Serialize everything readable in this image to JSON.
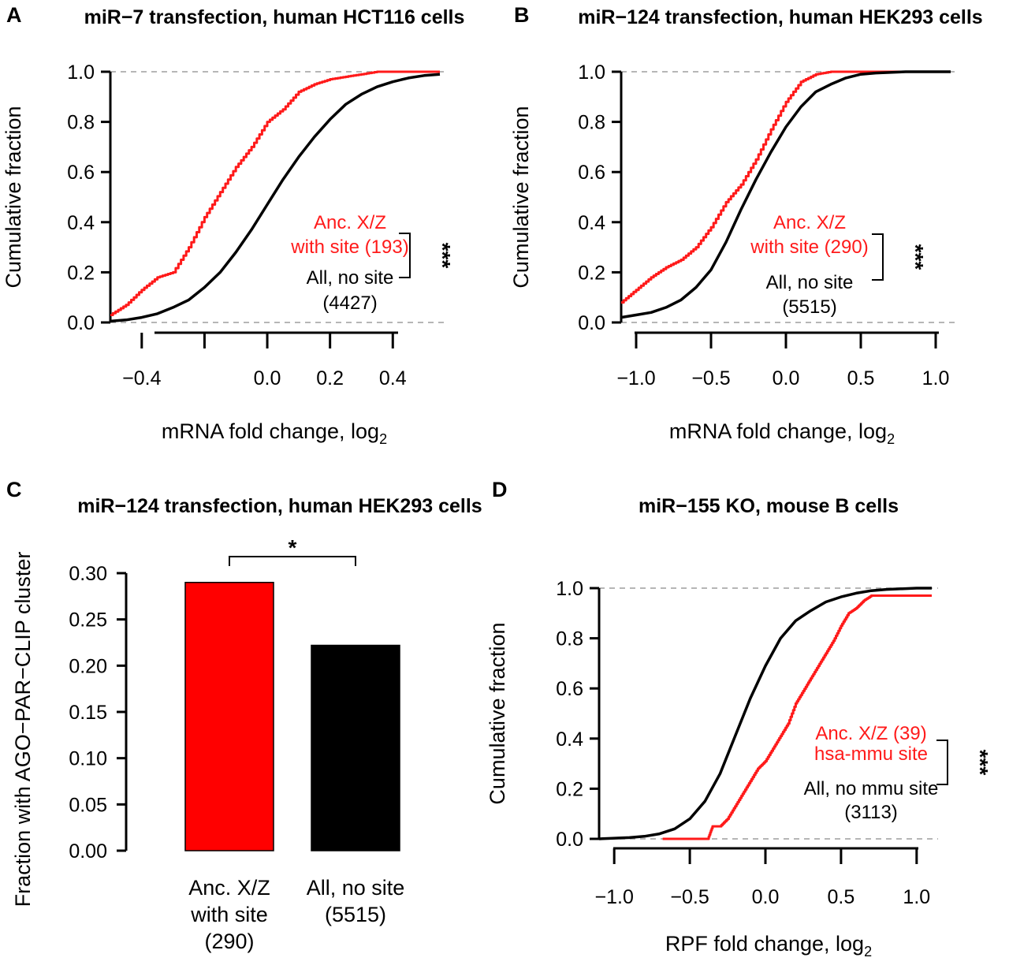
{
  "colors": {
    "red": "#ff1a1a",
    "black": "#000000",
    "grid": "#9e9e9e",
    "bar_red": "#ff0000",
    "bar_black": "#000000"
  },
  "chart_data": [
    {
      "panel": "A",
      "type": "line",
      "title": "miR−7 transfection, human HCT116 cells",
      "xlabel": "mRNA fold change, log",
      "xlabel_sub": "2",
      "ylabel": "Cumulative fraction",
      "xlim": [
        -0.5,
        0.55
      ],
      "ylim": [
        0,
        1
      ],
      "x_ticks": [
        -0.4,
        -0.2,
        0.0,
        0.2,
        0.4
      ],
      "x_tick_labels": [
        "−0.4",
        "",
        "0.0",
        "0.2",
        "0.4"
      ],
      "y_ticks": [
        0.0,
        0.2,
        0.4,
        0.6,
        0.8,
        1.0
      ],
      "y_tick_labels": [
        "0.0",
        "0.2",
        "0.4",
        "0.6",
        "0.8",
        "1.0"
      ],
      "series": [
        {
          "name": "Anc. X/Z with site (193)",
          "color": "red",
          "step": true,
          "x": [
            -0.5,
            -0.45,
            -0.4,
            -0.35,
            -0.3,
            -0.25,
            -0.2,
            -0.15,
            -0.1,
            -0.05,
            0.0,
            0.05,
            0.1,
            0.15,
            0.2,
            0.25,
            0.3,
            0.35,
            0.4,
            0.45,
            0.5,
            0.55
          ],
          "y": [
            0.03,
            0.07,
            0.13,
            0.18,
            0.2,
            0.3,
            0.42,
            0.52,
            0.62,
            0.7,
            0.8,
            0.85,
            0.92,
            0.95,
            0.97,
            0.98,
            0.99,
            1.0,
            1.0,
            1.0,
            1.0,
            1.0
          ]
        },
        {
          "name": "All, no site (4427)",
          "color": "black",
          "step": false,
          "x": [
            -0.5,
            -0.45,
            -0.4,
            -0.35,
            -0.3,
            -0.25,
            -0.2,
            -0.15,
            -0.1,
            -0.05,
            0.0,
            0.05,
            0.1,
            0.15,
            0.2,
            0.25,
            0.3,
            0.35,
            0.4,
            0.45,
            0.5,
            0.55
          ],
          "y": [
            0.005,
            0.01,
            0.02,
            0.035,
            0.06,
            0.09,
            0.14,
            0.2,
            0.28,
            0.37,
            0.47,
            0.57,
            0.66,
            0.74,
            0.81,
            0.87,
            0.91,
            0.94,
            0.96,
            0.975,
            0.985,
            0.99
          ]
        }
      ],
      "legend": {
        "red_lines": [
          "Anc. X/Z",
          "with site (193)"
        ],
        "black_lines": [
          "All, no site",
          "(4427)"
        ],
        "significance": "***"
      }
    },
    {
      "panel": "B",
      "type": "line",
      "title": "miR−124 transfection, human HEK293 cells",
      "xlabel": "mRNA fold change, log",
      "xlabel_sub": "2",
      "ylabel": "Cumulative fraction",
      "xlim": [
        -1.1,
        1.1
      ],
      "ylim": [
        0,
        1
      ],
      "x_ticks": [
        -1.0,
        -0.5,
        0.0,
        0.5,
        1.0
      ],
      "x_tick_labels": [
        "−1.0",
        "−0.5",
        "0.0",
        "0.5",
        "1.0"
      ],
      "y_ticks": [
        0.0,
        0.2,
        0.4,
        0.6,
        0.8,
        1.0
      ],
      "y_tick_labels": [
        "0.0",
        "0.2",
        "0.4",
        "0.6",
        "0.8",
        "1.0"
      ],
      "series": [
        {
          "name": "Anc. X/Z with site (290)",
          "color": "red",
          "step": true,
          "x": [
            -1.1,
            -1.0,
            -0.9,
            -0.8,
            -0.7,
            -0.6,
            -0.5,
            -0.4,
            -0.3,
            -0.2,
            -0.1,
            0.0,
            0.1,
            0.2,
            0.3,
            0.5,
            0.8,
            1.1
          ],
          "y": [
            0.08,
            0.13,
            0.18,
            0.22,
            0.25,
            0.3,
            0.38,
            0.48,
            0.55,
            0.65,
            0.77,
            0.88,
            0.96,
            0.99,
            1.0,
            1.0,
            1.0,
            1.0
          ]
        },
        {
          "name": "All, no site (5515)",
          "color": "black",
          "step": false,
          "x": [
            -1.1,
            -1.0,
            -0.9,
            -0.8,
            -0.7,
            -0.6,
            -0.5,
            -0.4,
            -0.3,
            -0.2,
            -0.1,
            0.0,
            0.1,
            0.2,
            0.3,
            0.4,
            0.5,
            0.6,
            0.8,
            1.1
          ],
          "y": [
            0.02,
            0.03,
            0.04,
            0.06,
            0.09,
            0.14,
            0.21,
            0.32,
            0.45,
            0.57,
            0.68,
            0.78,
            0.86,
            0.92,
            0.95,
            0.975,
            0.99,
            0.995,
            1.0,
            1.0
          ]
        }
      ],
      "legend": {
        "red_lines": [
          "Anc. X/Z",
          "with site (290)"
        ],
        "black_lines": [
          "All, no site",
          "(5515)"
        ],
        "significance": "***"
      }
    },
    {
      "panel": "C",
      "type": "bar",
      "title": "miR−124 transfection, human HEK293 cells",
      "ylabel": "Fraction with AGO−PAR−CLIP cluster",
      "ylim": [
        0,
        0.3
      ],
      "y_ticks": [
        0.0,
        0.05,
        0.1,
        0.15,
        0.2,
        0.25,
        0.3
      ],
      "y_tick_labels": [
        "0.00",
        "0.05",
        "0.10",
        "0.15",
        "0.20",
        "0.25",
        "0.30"
      ],
      "categories": [
        [
          "Anc. X/Z",
          "with site",
          "(290)"
        ],
        [
          "All, no site",
          "(5515)"
        ]
      ],
      "values": [
        0.29,
        0.222
      ],
      "bar_colors": [
        "bar_red",
        "bar_black"
      ],
      "significance": "*"
    },
    {
      "panel": "D",
      "type": "line",
      "title": "miR−155 KO, mouse B cells",
      "xlabel": "RPF fold change, log",
      "xlabel_sub": "2",
      "ylabel": "Cumulative fraction",
      "xlim": [
        -1.1,
        1.1
      ],
      "ylim": [
        0,
        1
      ],
      "x_ticks": [
        -1.0,
        -0.5,
        0.0,
        0.5,
        1.0
      ],
      "x_tick_labels": [
        "−1.0",
        "−0.5",
        "0.0",
        "0.5",
        "1.0"
      ],
      "y_ticks": [
        0.0,
        0.2,
        0.4,
        0.6,
        0.8,
        1.0
      ],
      "y_tick_labels": [
        "0.0",
        "0.2",
        "0.4",
        "0.6",
        "0.8",
        "1.0"
      ],
      "series": [
        {
          "name": "Anc. X/Z (39) hsa-mmu site",
          "color": "red",
          "step": true,
          "x": [
            -0.68,
            -0.38,
            -0.35,
            -0.3,
            -0.25,
            -0.2,
            -0.15,
            -0.1,
            -0.05,
            0.0,
            0.05,
            0.1,
            0.15,
            0.2,
            0.25,
            0.3,
            0.35,
            0.4,
            0.45,
            0.5,
            0.55,
            0.6,
            0.65,
            0.7,
            0.8,
            0.9,
            1.1
          ],
          "y": [
            0.0,
            0.0,
            0.05,
            0.05,
            0.08,
            0.13,
            0.18,
            0.23,
            0.28,
            0.31,
            0.36,
            0.41,
            0.46,
            0.54,
            0.59,
            0.64,
            0.69,
            0.74,
            0.79,
            0.85,
            0.9,
            0.92,
            0.95,
            0.97,
            0.97,
            0.97,
            0.97
          ]
        },
        {
          "name": "All, no mmu site (3113)",
          "color": "black",
          "step": false,
          "x": [
            -1.1,
            -0.9,
            -0.8,
            -0.7,
            -0.6,
            -0.5,
            -0.4,
            -0.3,
            -0.2,
            -0.1,
            0.0,
            0.1,
            0.2,
            0.3,
            0.4,
            0.5,
            0.6,
            0.7,
            0.8,
            1.0,
            1.1
          ],
          "y": [
            0.0,
            0.005,
            0.01,
            0.02,
            0.04,
            0.08,
            0.15,
            0.26,
            0.41,
            0.56,
            0.69,
            0.8,
            0.87,
            0.91,
            0.945,
            0.965,
            0.98,
            0.99,
            0.995,
            1.0,
            1.0
          ]
        }
      ],
      "legend": {
        "red_lines": [
          "Anc. X/Z (39)",
          "hsa-mmu site"
        ],
        "black_lines": [
          "All, no mmu site",
          "(3113)"
        ],
        "significance": "***"
      }
    }
  ]
}
